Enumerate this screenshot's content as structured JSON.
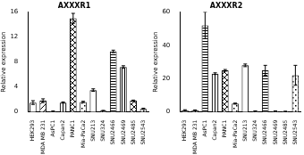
{
  "chart_data": [
    {
      "type": "bar",
      "title": "AXXXR1",
      "y_label": "Relative expression",
      "categories": [
        "HEK293",
        "MDA MB 231",
        "AsPC1",
        "Capan2",
        "PANC1",
        "Mia-PaCa2",
        "SNU213",
        "SNU324",
        "SNU2466",
        "SNU2469",
        "SNU2485",
        "SNU2543"
      ],
      "values": [
        1.5,
        1.8,
        0.1,
        1.5,
        15,
        1.6,
        3.5,
        0.2,
        9.7,
        7.2,
        1.8,
        0.5
      ],
      "errors": [
        0.3,
        0.3,
        0.05,
        0.1,
        0.8,
        0.1,
        0.2,
        0.05,
        0.2,
        0.2,
        0.1,
        0.1
      ],
      "color": "#000000",
      "ylim": [
        0,
        16
      ],
      "yticks": [
        0,
        4,
        8,
        12,
        16
      ]
    },
    {
      "type": "bar",
      "title": "AXXXR2",
      "y_label": "Relative expression",
      "categories": [
        "HEK293",
        "MDA MB 231",
        "AsPC1",
        "Capan2",
        "PANC1",
        "Mia-PaCa2",
        "SNU213",
        "SNU324",
        "SNU2466",
        "SNU2469",
        "SNU2485",
        "SNU2543"
      ],
      "values": [
        1,
        1,
        52,
        23,
        25,
        5,
        28,
        0.5,
        25,
        0.5,
        0.3,
        22
      ],
      "errors": [
        0.3,
        0.2,
        8,
        0.5,
        0.5,
        0.3,
        0.8,
        0.1,
        3,
        0.1,
        0.1,
        6
      ],
      "color": "#000000",
      "ylim": [
        0,
        60
      ],
      "yticks": [
        0,
        20,
        40,
        60
      ]
    }
  ]
}
